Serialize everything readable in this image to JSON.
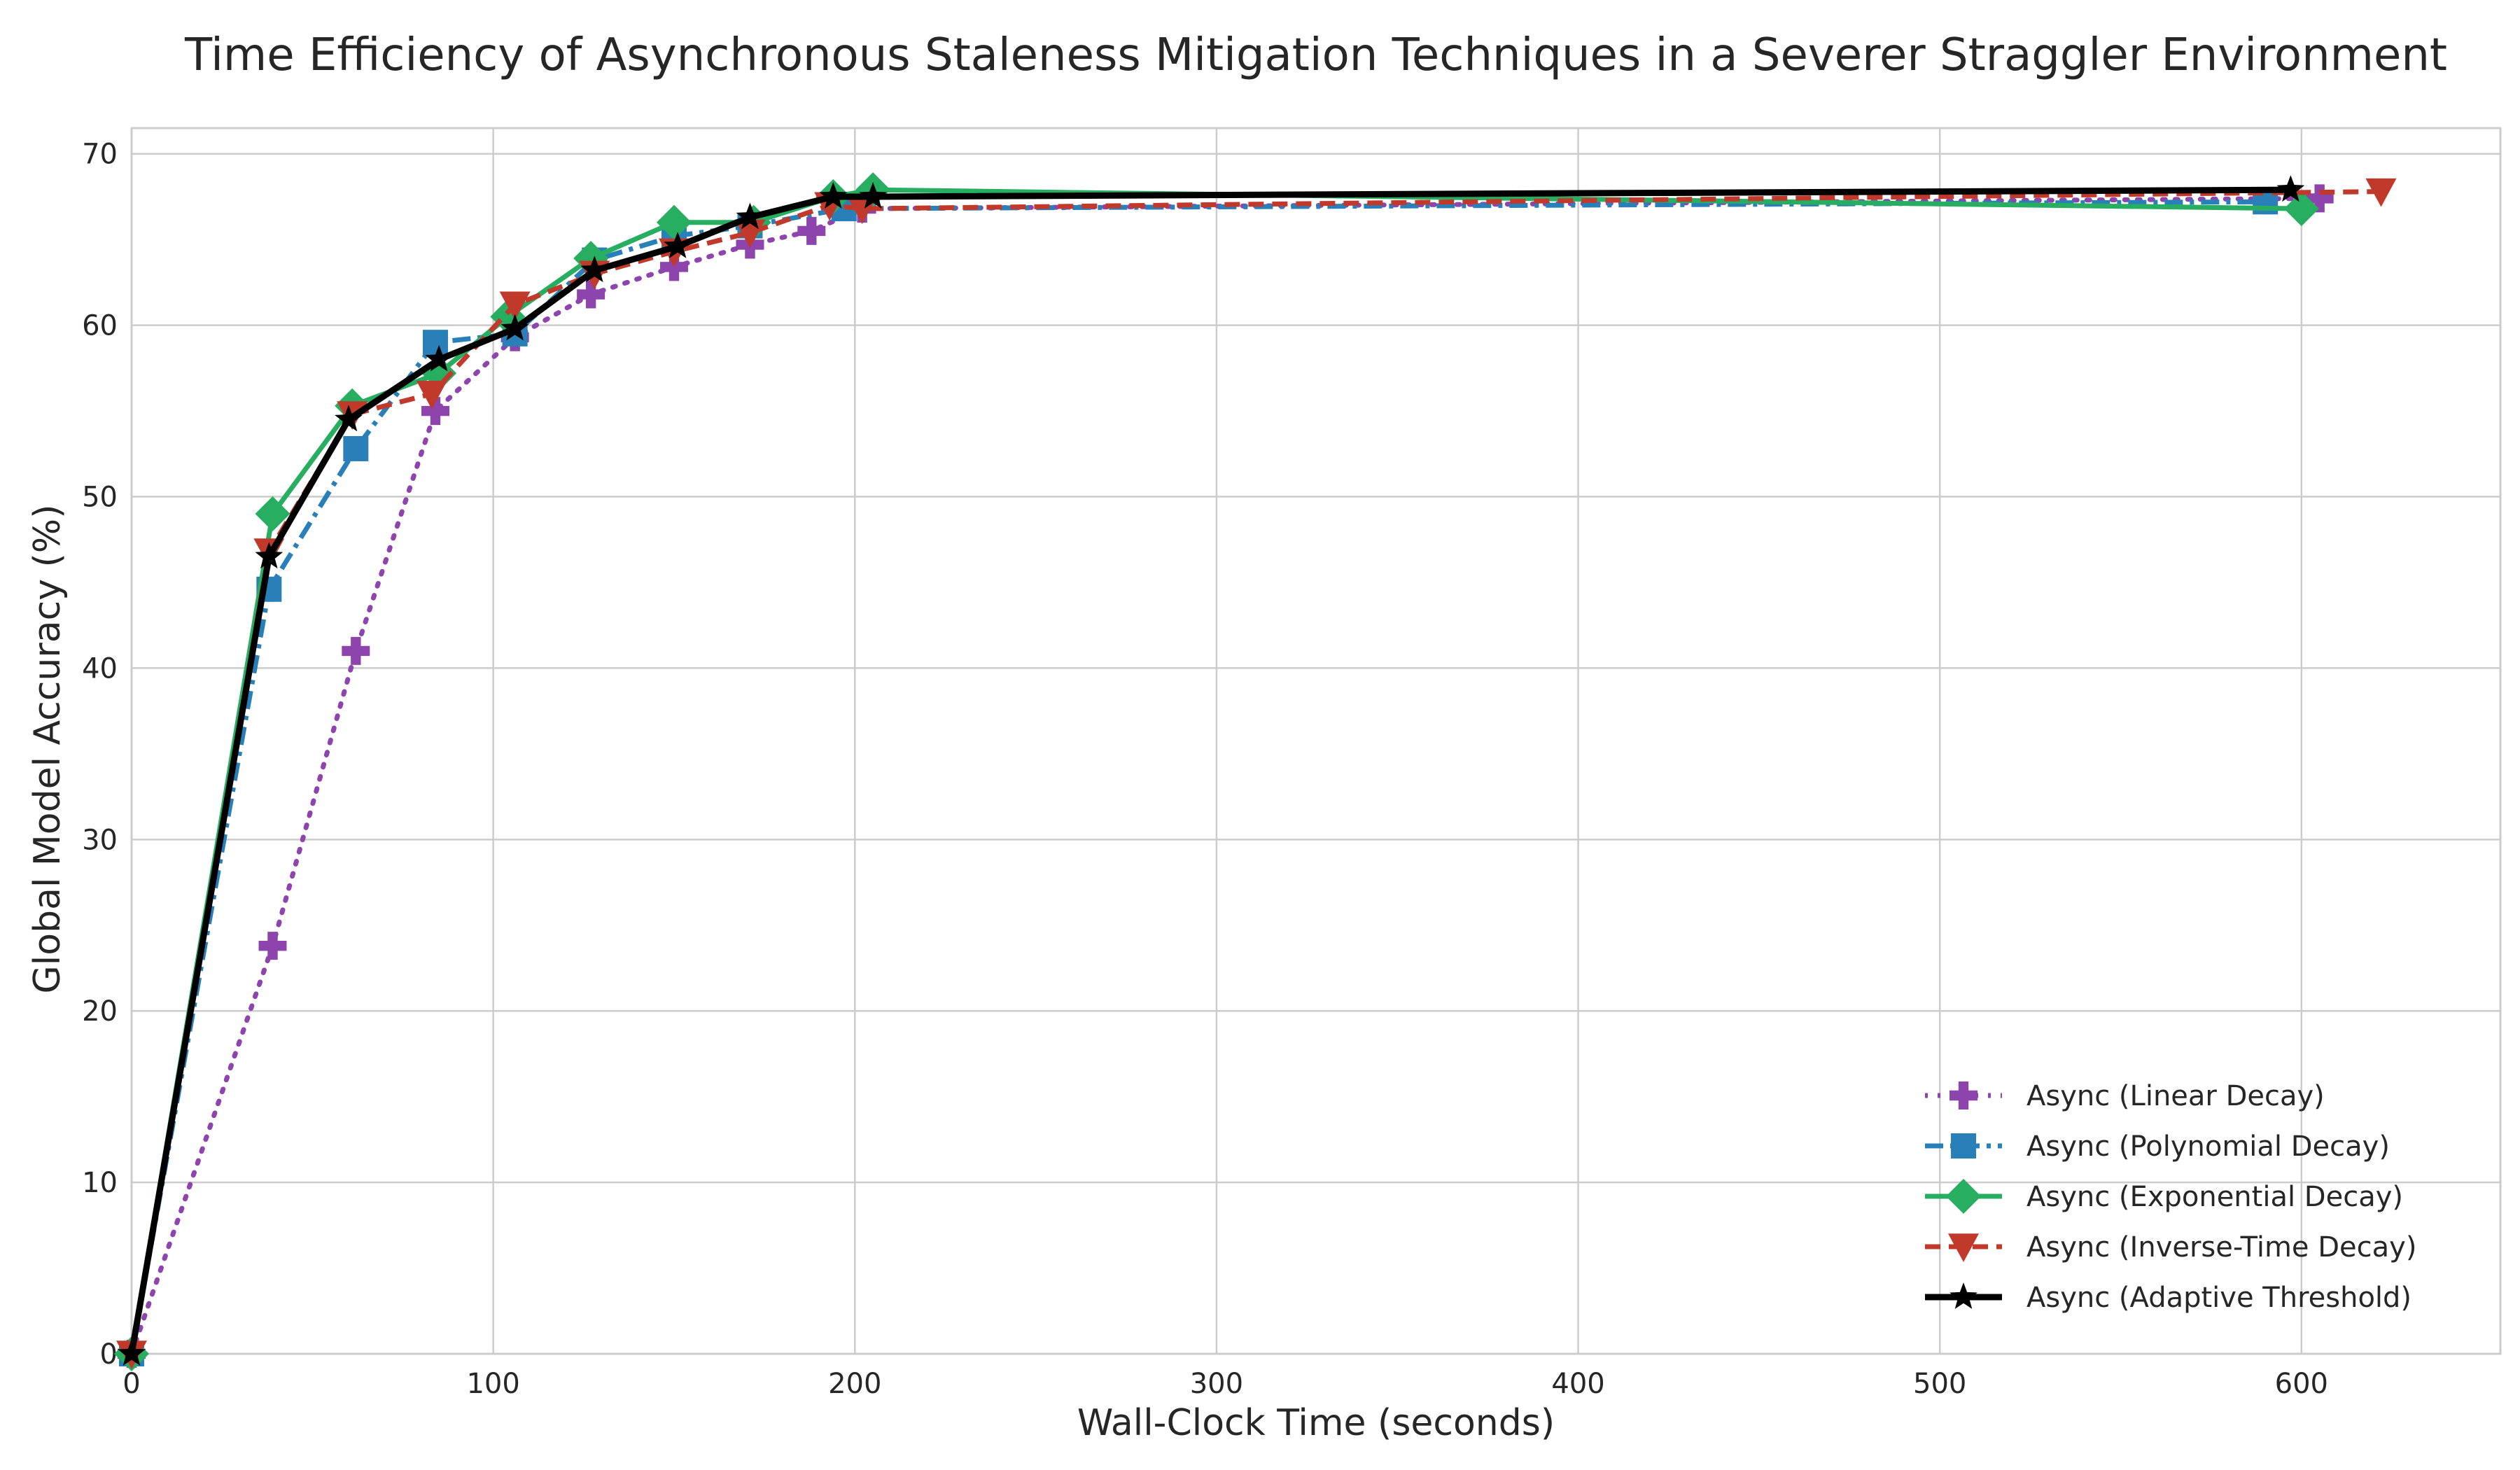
{
  "chart_data": {
    "type": "line",
    "title": "Time Efficiency of Asynchronous Staleness Mitigation Techniques in a Severer Straggler Environment",
    "xlabel": "Wall-Clock Time (seconds)",
    "ylabel": "Global Model Accuracy (%)",
    "xlim": [
      0,
      655
    ],
    "ylim": [
      0,
      71.5
    ],
    "xticks": [
      0,
      100,
      200,
      300,
      400,
      500,
      600
    ],
    "yticks": [
      0,
      10,
      20,
      30,
      40,
      50,
      60,
      70
    ],
    "grid": true,
    "legend_position": "bottom-right",
    "series": [
      {
        "name": "Async (Linear Decay)",
        "color": "#8e44ad",
        "line_style": "dotted",
        "marker": "plus",
        "x": [
          0,
          39,
          62,
          84,
          106,
          127,
          150,
          171,
          188,
          202,
          605
        ],
        "y": [
          0,
          23.8,
          41,
          55,
          59.3,
          61.8,
          63.4,
          64.7,
          65.5,
          66.8,
          67.4
        ]
      },
      {
        "name": "Async (Polynomial Decay)",
        "color": "#2980b9",
        "line_style": "dashdot",
        "marker": "square",
        "x": [
          0,
          38,
          62,
          84,
          106,
          128,
          150,
          171,
          197,
          590
        ],
        "y": [
          0,
          44.6,
          52.8,
          59,
          59.5,
          63.8,
          65.2,
          65.8,
          66.8,
          67.2
        ]
      },
      {
        "name": "Async (Exponential Decay)",
        "color": "#27ae60",
        "line_style": "solid",
        "marker": "diamond",
        "x": [
          0,
          39,
          61,
          85,
          104,
          127,
          150,
          172,
          194,
          205,
          600
        ],
        "y": [
          0,
          49,
          55.3,
          57.2,
          60.5,
          63.9,
          66,
          66,
          67.5,
          67.9,
          66.8
        ]
      },
      {
        "name": "Async (Inverse-Time Decay)",
        "color": "#c0392b",
        "line_style": "dashed",
        "marker": "triangle-down",
        "x": [
          0,
          38,
          61,
          83,
          106,
          128,
          150,
          171,
          193,
          202,
          622
        ],
        "y": [
          0,
          46.8,
          54.8,
          56,
          61.2,
          63,
          64.3,
          65.4,
          67,
          66.8,
          67.8
        ]
      },
      {
        "name": "Async (Adaptive Threshold)",
        "color": "#000000",
        "line_style": "solid",
        "marker": "star",
        "x": [
          0,
          38,
          60,
          85,
          106,
          128,
          151,
          171,
          194,
          205,
          597
        ],
        "y": [
          0,
          46.5,
          54.5,
          58,
          59.8,
          63.2,
          64.6,
          66.3,
          67.5,
          67.5,
          67.9
        ]
      }
    ]
  }
}
